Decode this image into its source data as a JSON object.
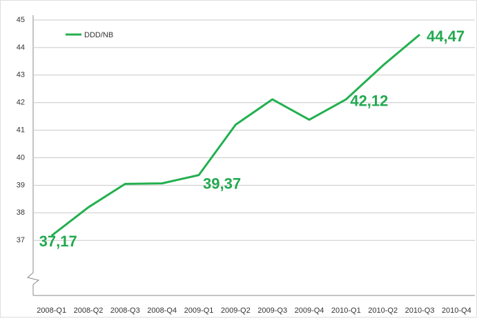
{
  "chart_data": {
    "type": "line",
    "categories": [
      "2008-Q1",
      "2008-Q2",
      "2008-Q3",
      "2008-Q4",
      "2009-Q1",
      "2009-Q2",
      "2009-Q3",
      "2009-Q4",
      "2010-Q1",
      "2010-Q2",
      "2010-Q3",
      "2010-Q4"
    ],
    "series": [
      {
        "name": "DDD/NB",
        "color": "#22b04f",
        "values": [
          37.17,
          38.2,
          39.05,
          39.07,
          39.37,
          41.2,
          42.12,
          41.38,
          42.12,
          43.35,
          44.47,
          null
        ],
        "value_labels": [
          "37,17",
          null,
          null,
          null,
          "39,37",
          null,
          null,
          null,
          "42,12",
          null,
          "44,47",
          null
        ]
      }
    ],
    "ylim": [
      35,
      45
    ],
    "yticks": [
      37,
      38,
      39,
      40,
      41,
      42,
      43,
      44,
      45
    ],
    "grid": true,
    "legend": "upper left"
  }
}
